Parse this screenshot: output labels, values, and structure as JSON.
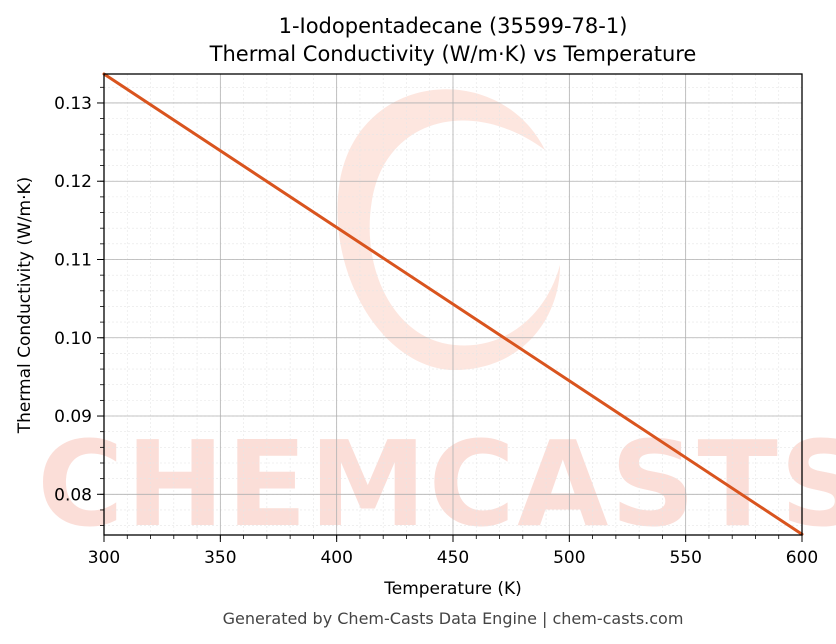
{
  "chart_data": {
    "type": "line",
    "title_line1": "1-Iodopentadecane (35599-78-1)",
    "title_line2": "Thermal Conductivity (W/m·K) vs Temperature",
    "xlabel": "Temperature (K)",
    "ylabel": "Thermal Conductivity (W/m·K)",
    "xlim": [
      300,
      600
    ],
    "ylim": [
      0.0748,
      0.1337
    ],
    "xticks": [
      300,
      350,
      400,
      450,
      500,
      550,
      600
    ],
    "yticks": [
      0.08,
      0.09,
      0.1,
      0.11,
      0.12,
      0.13
    ],
    "ytick_labels": [
      "0.08",
      "0.09",
      "0.10",
      "0.11",
      "0.12",
      "0.13"
    ],
    "grid": true,
    "series": [
      {
        "color": "#d9541e",
        "x": [
          300,
          600
        ],
        "y": [
          0.1337,
          0.0749
        ]
      }
    ]
  },
  "watermark": {
    "text": "CHEMCASTS",
    "color": "#fbd9d2"
  },
  "footer": "Generated by Chem-Casts Data Engine | chem-casts.com"
}
